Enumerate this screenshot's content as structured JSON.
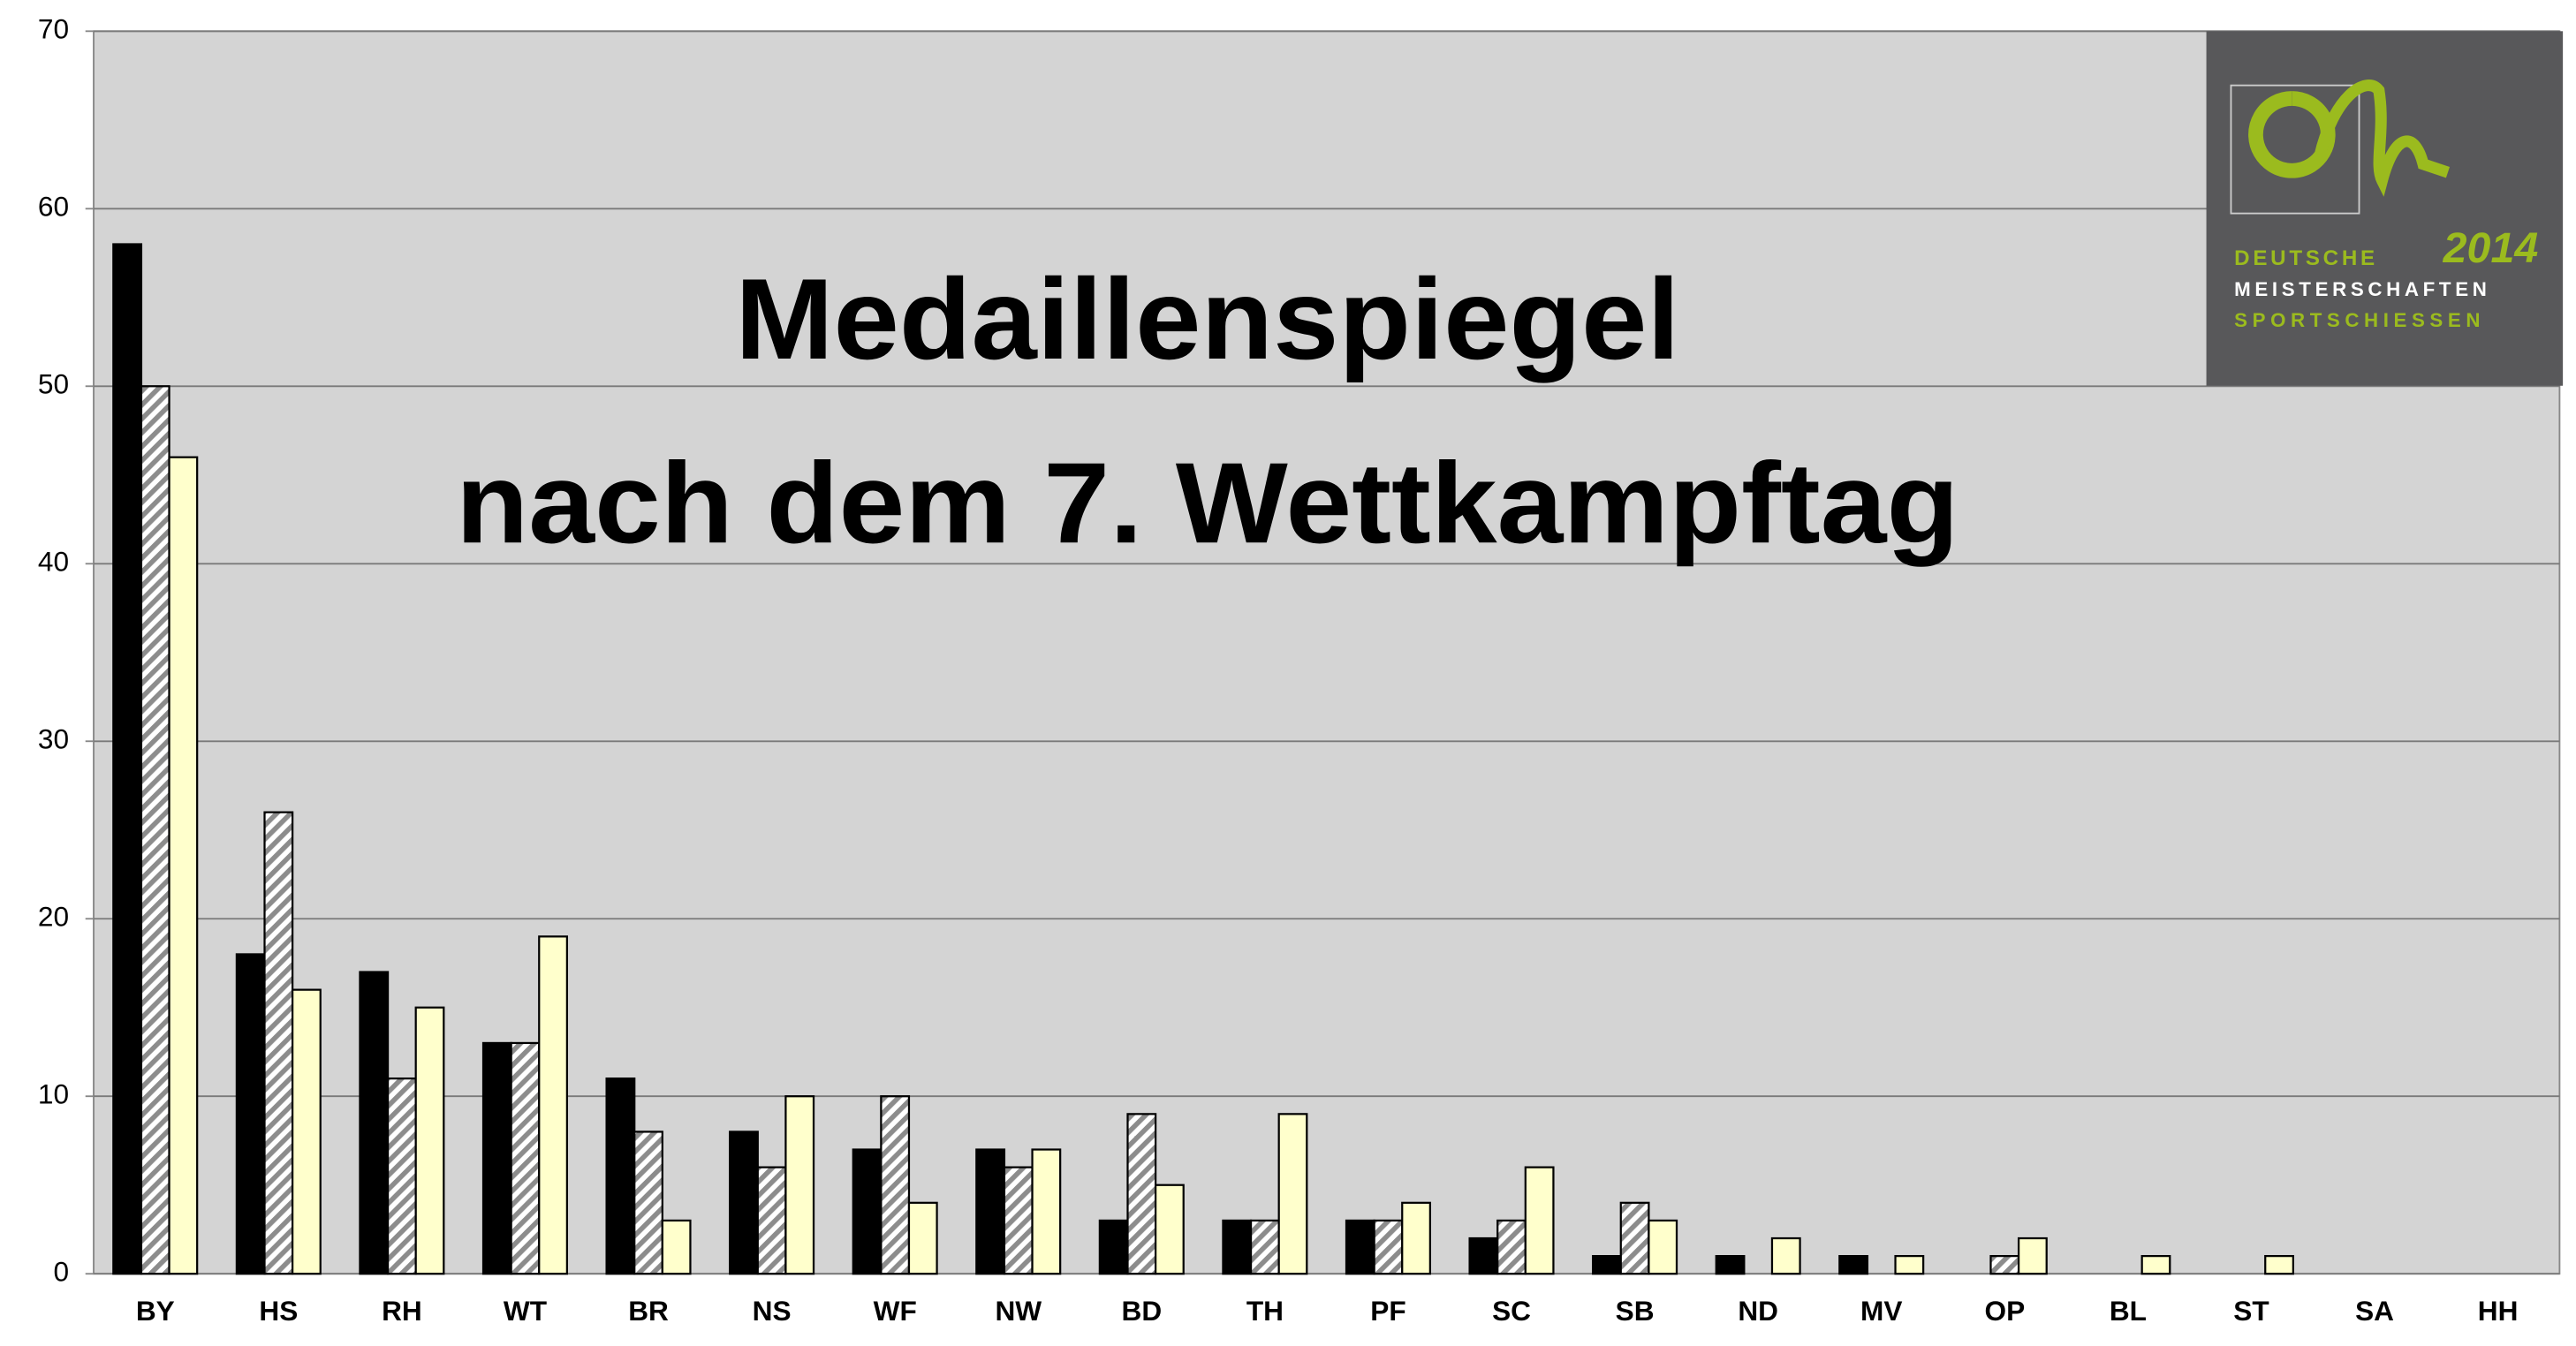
{
  "chart_data": {
    "type": "bar",
    "title": [
      "Medaillenspiegel",
      "nach dem 7. Wettkampftag"
    ],
    "categories": [
      "BY",
      "HS",
      "RH",
      "WT",
      "BR",
      "NS",
      "WF",
      "NW",
      "BD",
      "TH",
      "PF",
      "SC",
      "SB",
      "ND",
      "MV",
      "OP",
      "BL",
      "ST",
      "SA",
      "HH"
    ],
    "series": [
      {
        "color": "#000000",
        "values": [
          58,
          18,
          17,
          13,
          11,
          8,
          7,
          7,
          3,
          3,
          3,
          2,
          1,
          1,
          1,
          0,
          0,
          0,
          0,
          0
        ]
      },
      {
        "color": "#8c8c8c",
        "values": [
          50,
          26,
          11,
          13,
          8,
          6,
          10,
          6,
          9,
          3,
          3,
          3,
          4,
          0,
          0,
          1,
          0,
          0,
          0,
          0
        ]
      },
      {
        "color": "#ffffcc",
        "values": [
          46,
          16,
          15,
          19,
          3,
          10,
          4,
          7,
          5,
          9,
          4,
          6,
          3,
          2,
          1,
          2,
          1,
          1,
          0,
          0
        ]
      }
    ],
    "ylim": [
      0,
      70
    ],
    "yticks": [
      0,
      10,
      20,
      30,
      40,
      50,
      60,
      70
    ],
    "grid": true
  },
  "logo": {
    "line1": "DEUTSCHE",
    "year": "2014",
    "line2": "MEISTERSCHAFTEN",
    "line3": "SPORTSCHIESSEN"
  }
}
